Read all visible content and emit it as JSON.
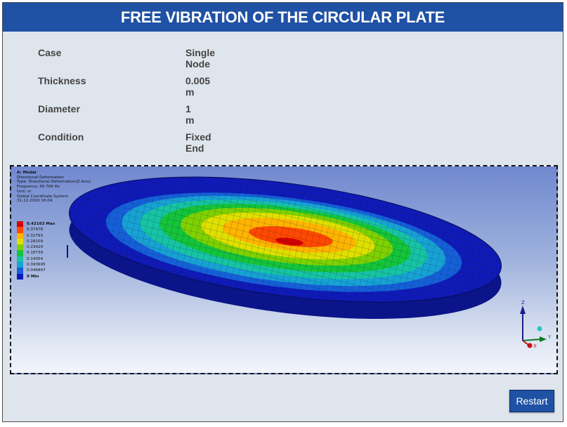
{
  "header": {
    "title": "FREE VIBRATION OF THE CIRCULAR PLATE"
  },
  "properties": [
    {
      "label": "Case",
      "value": "Single Node"
    },
    {
      "label": "Thickness",
      "value": "0.005 m"
    },
    {
      "label": "Diameter",
      "value": "1 m"
    },
    {
      "label": "Condition",
      "value": "Fixed End"
    }
  ],
  "viewer": {
    "info": {
      "title": "A: Modal",
      "lines": [
        "Directional Deformation",
        "Type: Directional Deformation(Z Axis)",
        "Frequency: 49.704 Hz",
        "Unit: m",
        "Global Coordinate System",
        "31-12-2020 16:04"
      ]
    },
    "legend": [
      {
        "value": "0.42163 Max",
        "color": "#d40000",
        "strong": true
      },
      {
        "value": "0.37478",
        "color": "#ff4800",
        "strong": false
      },
      {
        "value": "0.32793",
        "color": "#ffb400",
        "strong": false
      },
      {
        "value": "0.28109",
        "color": "#e0e000",
        "strong": false
      },
      {
        "value": "0.23424",
        "color": "#7fd100",
        "strong": false
      },
      {
        "value": "0.18739",
        "color": "#14c43a",
        "strong": false
      },
      {
        "value": "0.14054",
        "color": "#16c4a3",
        "strong": false
      },
      {
        "value": "0.093695",
        "color": "#17a2d4",
        "strong": false
      },
      {
        "value": "0.046847",
        "color": "#1560d8",
        "strong": false
      },
      {
        "value": "0 Min",
        "color": "#0d17b6",
        "strong": true
      }
    ],
    "axes": {
      "z": "Z",
      "y": "Y",
      "x": "X"
    }
  },
  "actions": {
    "restart_label": "Restart"
  }
}
